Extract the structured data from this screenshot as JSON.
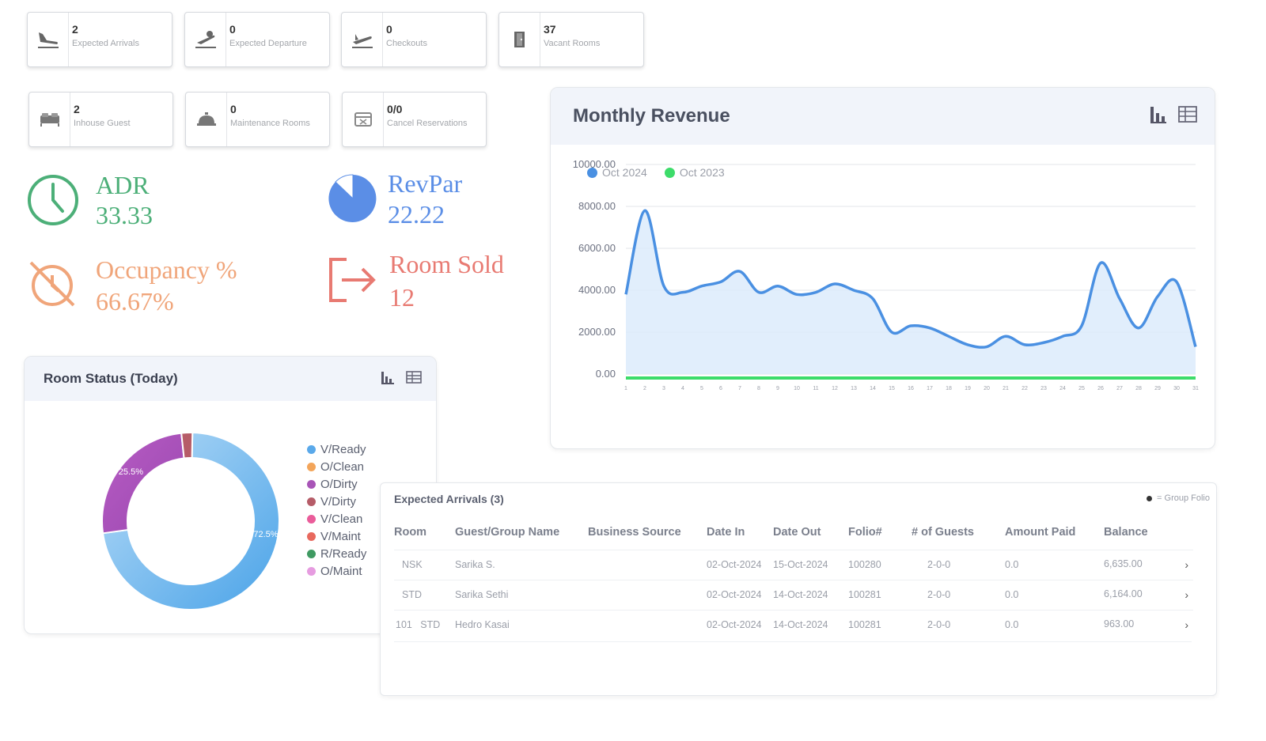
{
  "stat_cards_row1": [
    {
      "value": "2",
      "label": "Expected Arrivals",
      "icon": "plane-landing-icon"
    },
    {
      "value": "0",
      "label": "Expected Departure",
      "icon": "plane-departure-icon"
    },
    {
      "value": "0",
      "label": "Checkouts",
      "icon": "plane-takeoff-icon"
    },
    {
      "value": "37",
      "label": "Vacant Rooms",
      "icon": "door-icon"
    }
  ],
  "stat_cards_row2": [
    {
      "value": "2",
      "label": "Inhouse Guest",
      "icon": "bed-icon"
    },
    {
      "value": "0",
      "label": "Maintenance Rooms",
      "icon": "hotel-bell-icon"
    },
    {
      "value": "0/0",
      "label": "Cancel Reservations",
      "icon": "cancel-calendar-icon"
    }
  ],
  "kpis": {
    "adr": {
      "label": "ADR",
      "value": "33.33",
      "color": "#4caf78"
    },
    "revpar": {
      "label": "RevPar",
      "value": "22.22",
      "color": "#5b8ee6"
    },
    "occupancy": {
      "label": "Occupancy %",
      "value": "66.67%",
      "color": "#f0a57a"
    },
    "room_sold": {
      "label": "Room Sold",
      "value": "12",
      "color": "#e87a72"
    }
  },
  "room_status": {
    "title": "Room Status (Today)",
    "legend": [
      {
        "label": "V/Ready",
        "color": "#5aa9ea"
      },
      {
        "label": "O/Clean",
        "color": "#f3a55a"
      },
      {
        "label": "O/Dirty",
        "color": "#a855b7"
      },
      {
        "label": "V/Dirty",
        "color": "#b65c68"
      },
      {
        "label": "V/Clean",
        "color": "#ea5c9a"
      },
      {
        "label": "V/Maint",
        "color": "#e8695e"
      },
      {
        "label": "R/Ready",
        "color": "#3f9a62"
      },
      {
        "label": "O/Maint",
        "color": "#e69ce0"
      }
    ],
    "slice_labels": {
      "v_ready": "72.5%",
      "o_dirty": "25.5%"
    },
    "chart_data": {
      "type": "pie",
      "categories": [
        "V/Ready",
        "O/Dirty",
        "V/Dirty"
      ],
      "values": [
        72.5,
        25.5,
        2.0
      ]
    }
  },
  "monthly_revenue": {
    "title": "Monthly Revenue",
    "colors": {
      "oct2024": "#4a90e2",
      "oct2023": "#3ddc6a"
    },
    "chart_data": {
      "type": "area",
      "y_tick_labels": [
        "10000.00",
        "8000.00",
        "6000.00",
        "4000.00",
        "2000.00",
        "0.00"
      ],
      "ylim": [
        0,
        10000
      ],
      "grid": true,
      "legend_position": "top-left",
      "x": [
        1,
        2,
        3,
        4,
        5,
        6,
        7,
        8,
        9,
        10,
        11,
        12,
        13,
        14,
        15,
        16,
        17,
        18,
        19,
        20,
        21,
        22,
        23,
        24,
        25,
        26,
        27,
        28,
        29,
        30,
        31
      ],
      "series": [
        {
          "name": "Oct 2024",
          "values": [
            3800,
            7800,
            4200,
            3900,
            4200,
            4400,
            4900,
            3900,
            4200,
            3800,
            3900,
            4300,
            4000,
            3600,
            2000,
            2300,
            2200,
            1800,
            1400,
            1300,
            1800,
            1400,
            1500,
            1800,
            2300,
            5300,
            3600,
            2200,
            3700,
            4400,
            1300
          ]
        },
        {
          "name": "Oct 2023",
          "values": [
            0,
            0,
            0,
            0,
            0,
            0,
            0,
            0,
            0,
            0,
            0,
            0,
            0,
            0,
            0,
            0,
            0,
            0,
            0,
            0,
            0,
            0,
            0,
            0,
            0,
            0,
            0,
            0,
            0,
            0,
            0
          ]
        }
      ]
    }
  },
  "arrivals": {
    "title": "Expected Arrivals (3)",
    "group_folio_label": "= Group Folio",
    "columns": [
      "Room",
      "Guest/Group Name",
      "Business Source",
      "Date In",
      "Date Out",
      "Folio#",
      "# of Guests",
      "Amount Paid",
      "Balance"
    ],
    "rows": [
      {
        "room": "NSK",
        "guest": "Sarika S.",
        "source": "",
        "date_in": "02-Oct-2024",
        "date_out": "15-Oct-2024",
        "folio": "100280",
        "guests": "2-0-0",
        "paid": "0.0",
        "balance": "6,635.00"
      },
      {
        "room": "STD",
        "guest": "Sarika Sethi",
        "source": "",
        "date_in": "02-Oct-2024",
        "date_out": "14-Oct-2024",
        "folio": "100281",
        "guests": "2-0-0",
        "paid": "0.0",
        "balance": "6,164.00"
      },
      {
        "room": "101   STD",
        "guest": "Hedro Kasai",
        "source": "",
        "date_in": "02-Oct-2024",
        "date_out": "14-Oct-2024",
        "folio": "100281",
        "guests": "2-0-0",
        "paid": "0.0",
        "balance": "963.00"
      }
    ]
  }
}
